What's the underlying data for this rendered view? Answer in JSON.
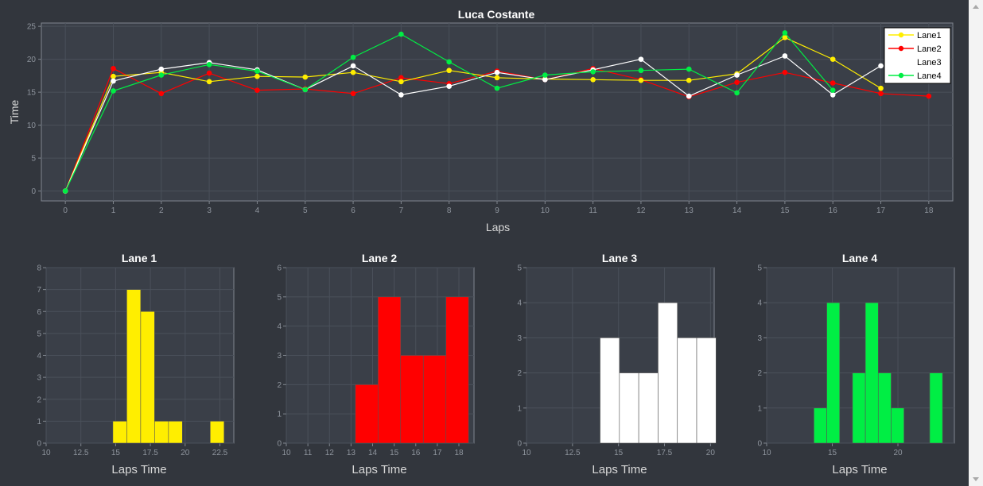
{
  "colors": {
    "background": "#32363d",
    "plot_background": "#3a3f48",
    "grid": "#4a505a",
    "axis": "#80868f",
    "lane1": "#ffee00",
    "lane2": "#ff0000",
    "lane3": "#ffffff",
    "lane4": "#00ee44"
  },
  "scrollbar": {
    "up_icon": "chevron-up-icon",
    "down_icon": "chevron-down-icon"
  },
  "chart_data": [
    {
      "type": "line",
      "title": "Luca Costante",
      "xlabel": "Laps",
      "ylabel": "Time",
      "xlim": [
        -0.5,
        18.5
      ],
      "ylim": [
        -1.5,
        25.5
      ],
      "xticks": [
        "0",
        "1",
        "2",
        "3",
        "4",
        "5",
        "6",
        "7",
        "8",
        "9",
        "10",
        "11",
        "12",
        "13",
        "14",
        "15",
        "16",
        "17",
        "18"
      ],
      "yticks": [
        "0",
        "5",
        "10",
        "15",
        "20",
        "25"
      ],
      "grid": true,
      "legend_position": "top-right",
      "series": [
        {
          "name": "Lane1",
          "color": "#ffee00",
          "x": [
            0,
            1,
            2,
            3,
            4,
            5,
            6,
            7,
            8,
            9,
            10,
            11,
            12,
            13,
            14,
            15,
            16,
            17
          ],
          "y": [
            0,
            17.4,
            18.0,
            16.6,
            17.4,
            17.3,
            18.0,
            16.6,
            18.3,
            17.2,
            17.0,
            16.9,
            16.8,
            16.8,
            17.8,
            23.3,
            20.0,
            15.6
          ]
        },
        {
          "name": "Lane2",
          "color": "#ff0000",
          "x": [
            0,
            1,
            2,
            3,
            4,
            5,
            6,
            7,
            8,
            9,
            10,
            11,
            12,
            13,
            14,
            15,
            16,
            17,
            18
          ],
          "y": [
            0,
            18.6,
            14.8,
            17.9,
            15.3,
            15.5,
            14.8,
            17.2,
            16.3,
            18.2,
            16.9,
            18.6,
            16.9,
            14.3,
            16.5,
            18.0,
            16.4,
            14.8,
            14.4
          ]
        },
        {
          "name": "Lane3",
          "color": "#ffffff",
          "x": [
            0,
            1,
            2,
            3,
            4,
            5,
            6,
            7,
            8,
            9,
            10,
            11,
            12,
            13,
            14,
            15,
            16,
            17
          ],
          "y": [
            0,
            16.7,
            18.5,
            19.5,
            18.4,
            15.4,
            19.0,
            14.6,
            15.9,
            18.0,
            16.9,
            18.4,
            20.0,
            14.4,
            17.6,
            20.5,
            14.6,
            19.0
          ]
        },
        {
          "name": "Lane4",
          "color": "#00ee44",
          "x": [
            0,
            1,
            2,
            3,
            4,
            5,
            6,
            7,
            8,
            9,
            10,
            11,
            12,
            13,
            14,
            15,
            16
          ],
          "y": [
            0,
            15.2,
            17.6,
            19.2,
            18.2,
            15.4,
            20.3,
            23.8,
            19.6,
            15.6,
            17.6,
            18.1,
            18.3,
            18.5,
            14.9,
            24.0,
            15.3
          ]
        }
      ]
    },
    {
      "type": "bar",
      "subtype": "histogram",
      "title": "Lane 1",
      "xlabel": "Laps Time",
      "ylabel": "",
      "color": "#ffee00",
      "xlim": [
        10,
        23.5
      ],
      "ylim": [
        0,
        8
      ],
      "xticks": [
        10,
        12.5,
        15,
        17.5,
        20,
        22.5
      ],
      "xtick_labels": [
        "10",
        "12.5",
        "15",
        "17.5",
        "20",
        "22.5"
      ],
      "yticks": [
        "0",
        "1",
        "2",
        "3",
        "4",
        "5",
        "6",
        "7",
        "8"
      ],
      "bin_width": 1,
      "bins_start": [
        14.8,
        15.8,
        16.8,
        17.8,
        18.8,
        21.8
      ],
      "counts": [
        1,
        7,
        6,
        1,
        1,
        1
      ]
    },
    {
      "type": "bar",
      "subtype": "histogram",
      "title": "Lane 2",
      "xlabel": "Laps Time",
      "ylabel": "",
      "color": "#ff0000",
      "xlim": [
        10,
        18.7
      ],
      "ylim": [
        0,
        6
      ],
      "xticks": [
        10,
        11,
        12,
        13,
        14,
        15,
        16,
        17,
        18
      ],
      "xtick_labels": [
        "10",
        "11",
        "12",
        "13",
        "14",
        "15",
        "16",
        "17",
        "18"
      ],
      "yticks": [
        "0",
        "1",
        "2",
        "3",
        "4",
        "5",
        "6"
      ],
      "bin_width": 1.05,
      "bins_start": [
        13.2,
        14.25,
        15.3,
        16.35,
        17.4
      ],
      "counts": [
        2,
        5,
        3,
        3,
        5
      ]
    },
    {
      "type": "bar",
      "subtype": "histogram",
      "title": "Lane 3",
      "xlabel": "Laps Time",
      "ylabel": "",
      "color": "#ffffff",
      "xlim": [
        10,
        20.2
      ],
      "ylim": [
        0,
        5
      ],
      "xticks": [
        10,
        12.5,
        15,
        17.5,
        20
      ],
      "xtick_labels": [
        "10",
        "12.5",
        "15",
        "17.5",
        "20"
      ],
      "yticks": [
        "0",
        "1",
        "2",
        "3",
        "4",
        "5"
      ],
      "bin_width": 1.05,
      "bins_start": [
        14.0,
        15.05,
        16.1,
        17.15,
        18.2,
        19.25
      ],
      "counts": [
        3,
        2,
        2,
        4,
        3,
        3
      ]
    },
    {
      "type": "bar",
      "subtype": "histogram",
      "title": "Lane 4",
      "xlabel": "Laps Time",
      "ylabel": "",
      "color": "#00ee44",
      "xlim": [
        10,
        24.3
      ],
      "ylim": [
        0,
        5
      ],
      "xticks": [
        10,
        15,
        20
      ],
      "xtick_labels": [
        "10",
        "15",
        "20"
      ],
      "yticks": [
        "0",
        "1",
        "2",
        "3",
        "4",
        "5"
      ],
      "bin_width": 0.98,
      "bins_start": [
        13.6,
        14.58,
        16.54,
        17.52,
        18.5,
        19.48,
        22.42
      ],
      "counts": [
        1,
        4,
        2,
        4,
        2,
        1,
        2
      ]
    }
  ]
}
